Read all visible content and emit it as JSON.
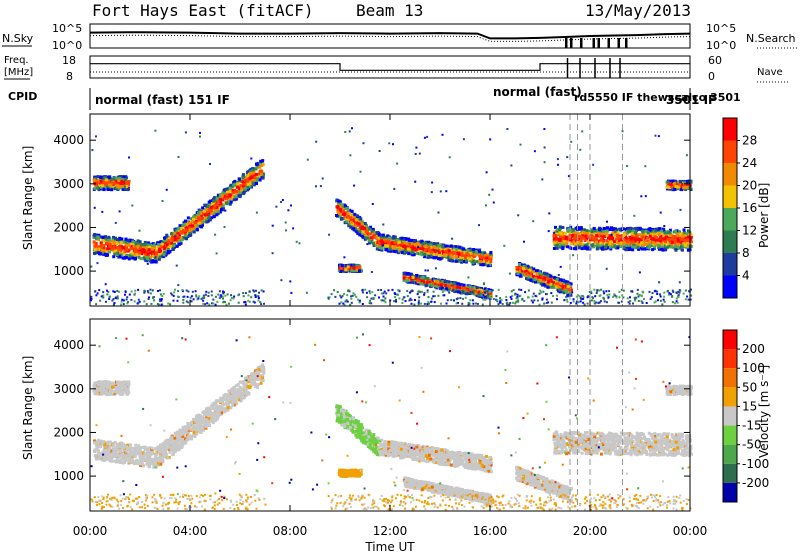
{
  "header": {
    "title": "Fort Hays East (fitACF)",
    "beam": "Beam 13",
    "date": "13/May/2013"
  },
  "top_panels": {
    "nsky_label": "N.Sky",
    "nsearch_label": "N.Search",
    "noise_ticks_left": [
      "10^5",
      "10^0"
    ],
    "noise_ticks_right": [
      "10^5",
      "10^0"
    ],
    "freq_label_line1": "Freq.",
    "freq_label_line2": "[MHz]",
    "freq_ticks": [
      "18",
      "8"
    ],
    "nave_label": "Nave",
    "nave_ticks": [
      "60",
      "0"
    ],
    "cpid_label": "CPID",
    "cpid_mode_1": "normal (fast) 151 IF",
    "cpid_mode_2": "normal (fast)",
    "cpid_mode_3": "3501 IF",
    "cpid_overlap": "rd5550 IF thewscalco 3501"
  },
  "x_tick_labels": [
    "00:00",
    "04:00",
    "08:00",
    "12:00",
    "16:00",
    "20:00",
    "00:00"
  ],
  "xlabel": "Time UT",
  "colors": {
    "power": [
      "#0000ff",
      "#1e3c9e",
      "#2e7d52",
      "#4ca85a",
      "#f2c200",
      "#f28a00",
      "#ff4500",
      "#ff0000"
    ],
    "velocity": [
      "#0000aa",
      "#2e6e4e",
      "#4ca84a",
      "#6cd040",
      "#c8c8c8",
      "#f0a000",
      "#f07000",
      "#ff3300",
      "#ff0000"
    ]
  },
  "chart_data": [
    {
      "type": "line",
      "title": "",
      "xlabel": "",
      "ylabel": "N.Sky",
      "x_range_hours": [
        0,
        24
      ],
      "series": [
        {
          "name": "N.Sky",
          "x": [
            0,
            2,
            4,
            6,
            8,
            10,
            12,
            14,
            15.5,
            16,
            17,
            18,
            19,
            20,
            21,
            22,
            23,
            24
          ],
          "values": [
            3.2,
            3.3,
            3.2,
            3.0,
            3.0,
            3.1,
            3.0,
            3.1,
            3.0,
            2.0,
            2.0,
            2.1,
            2.3,
            2.5,
            2.6,
            2.7,
            2.9,
            3.0
          ]
        }
      ],
      "note_ylim_log": [
        0,
        5
      ]
    },
    {
      "type": "line",
      "title": "",
      "xlabel": "",
      "ylabel": "Freq. [MHz]",
      "ylim": [
        8,
        18
      ],
      "series": [
        {
          "name": "Freq.",
          "x": [
            0,
            10,
            10,
            18,
            18,
            24
          ],
          "values": [
            14.5,
            14.5,
            11.5,
            11.5,
            14.5,
            14.5
          ]
        }
      ]
    },
    {
      "type": "heatmap",
      "title": "",
      "xlabel": "",
      "ylabel": "Slant Range [km]",
      "colorbar_label": "Power [dB]",
      "colorbar_ticks": [
        "28",
        "24",
        "20",
        "16",
        "12",
        "8",
        "4"
      ],
      "x_range_hours": [
        0,
        24
      ],
      "ylim": [
        200,
        4600
      ],
      "y_ticks": [
        1000,
        2000,
        3000,
        4000
      ]
    },
    {
      "type": "heatmap",
      "title": "",
      "xlabel": "Time UT",
      "ylabel": "Slant Range [km]",
      "colorbar_label": "Velocity [m s⁻¹]",
      "colorbar_ticks": [
        "200",
        "100",
        "50",
        "15",
        "-15",
        "-50",
        "-100",
        "-200"
      ],
      "x_range_hours": [
        0,
        24
      ],
      "ylim": [
        200,
        4600
      ],
      "y_ticks": [
        1000,
        2000,
        3000,
        4000
      ]
    }
  ]
}
